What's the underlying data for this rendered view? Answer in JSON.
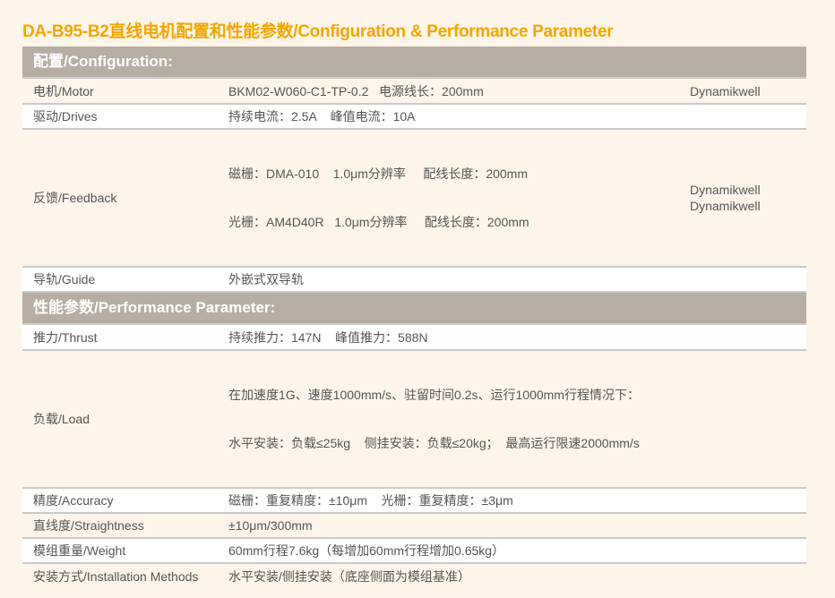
{
  "title": "DA-B95-B2直线电机配置和性能参数/Configuration & Performance Parameter",
  "configuration": {
    "header": "配置/Configuration:",
    "rows": [
      {
        "label": "电机/Motor",
        "lines": [
          "BKM02-W060-C1-TP-0.2   电源线长：200mm"
        ],
        "brand": [
          "Dynamikwell"
        ]
      },
      {
        "label": "驱动/Drives",
        "lines": [
          "持续电流：2.5A    峰值电流：10A"
        ],
        "brand": []
      },
      {
        "label": "反馈/Feedback",
        "lines": [
          "磁栅：DMA-010    1.0μm分辨率     配线长度：200mm",
          "光栅：AM4D40R   1.0μm分辨率     配线长度：200mm"
        ],
        "brand": [
          "Dynamikwell",
          "Dynamikwell"
        ]
      },
      {
        "label": "导轨/Guide",
        "lines": [
          "外嵌式双导轨"
        ],
        "brand": []
      }
    ]
  },
  "performance": {
    "header": "性能参数/Performance Parameter:",
    "rows": [
      {
        "label": "推力/Thrust",
        "lines": [
          "持续推力：147N    峰值推力：588N"
        ]
      },
      {
        "label": "负载/Load",
        "lines": [
          "在加速度1G、速度1000mm/s、驻留时间0.2s、运行1000mm行程情况下：",
          "水平安装：负载≤25kg    侧挂安装：负载≤20kg；  最高运行限速2000mm/s"
        ]
      },
      {
        "label": "精度/Accuracy",
        "lines": [
          "磁栅：重复精度：±10μm    光栅：重复精度：±3μm"
        ]
      },
      {
        "label": "直线度/Straightness",
        "lines": [
          "±10μm/300mm"
        ]
      },
      {
        "label": "模组重量/Weight",
        "lines": [
          "60mm行程7.6kg（每增加60mm行程增加0.65kg）"
        ]
      },
      {
        "label": "安装方式/Installation Methods",
        "lines": [
          "水平安装/侧挂安装（底座侧面为模组基准）"
        ]
      }
    ]
  }
}
